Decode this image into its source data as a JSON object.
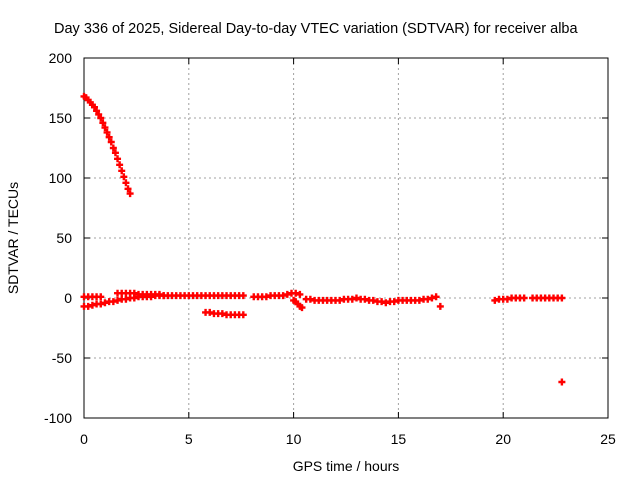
{
  "chart_data": {
    "type": "scatter",
    "title": "Day 336 of 2025, Sidereal Day-to-day VTEC variation (SDTVAR) for receiver alba",
    "xlabel": "GPS time / hours",
    "ylabel": "SDTVAR / TECUs",
    "xlim": [
      0,
      25
    ],
    "ylim": [
      -100,
      200
    ],
    "xticks": [
      0,
      5,
      10,
      15,
      20,
      25
    ],
    "yticks": [
      -100,
      -50,
      0,
      50,
      100,
      150,
      200
    ],
    "grid": true,
    "legend": "none",
    "marker": "+",
    "color": "#ff0000",
    "series": [
      {
        "points": [
          [
            0.0,
            168
          ],
          [
            0.1,
            167
          ],
          [
            0.2,
            165
          ],
          [
            0.3,
            163
          ],
          [
            0.4,
            161
          ],
          [
            0.5,
            159
          ],
          [
            0.6,
            156
          ],
          [
            0.7,
            153
          ],
          [
            0.8,
            150
          ],
          [
            0.9,
            146
          ],
          [
            1.0,
            142
          ],
          [
            1.1,
            138
          ],
          [
            1.2,
            134
          ],
          [
            1.3,
            130
          ],
          [
            1.4,
            125
          ],
          [
            1.5,
            121
          ],
          [
            1.6,
            116
          ],
          [
            1.7,
            111
          ],
          [
            1.8,
            106
          ],
          [
            1.9,
            101
          ],
          [
            2.0,
            96
          ],
          [
            2.1,
            91
          ],
          [
            2.2,
            87
          ],
          [
            0.0,
            -7
          ],
          [
            0.2,
            -7
          ],
          [
            0.4,
            -6
          ],
          [
            0.6,
            -5
          ],
          [
            0.8,
            -5
          ],
          [
            1.0,
            -4
          ],
          [
            1.2,
            -3
          ],
          [
            1.4,
            -3
          ],
          [
            1.6,
            -2
          ],
          [
            1.8,
            -1
          ],
          [
            2.0,
            -1
          ],
          [
            2.2,
            0
          ],
          [
            2.4,
            0
          ],
          [
            2.6,
            1
          ],
          [
            2.8,
            1
          ],
          [
            3.0,
            1
          ],
          [
            3.2,
            1
          ],
          [
            3.4,
            2
          ],
          [
            3.6,
            2
          ],
          [
            3.8,
            2
          ],
          [
            4.0,
            2
          ],
          [
            4.2,
            2
          ],
          [
            4.4,
            2
          ],
          [
            0.0,
            1
          ],
          [
            0.2,
            1
          ],
          [
            0.4,
            1
          ],
          [
            0.6,
            1
          ],
          [
            0.8,
            1
          ],
          [
            1.6,
            4
          ],
          [
            1.8,
            4
          ],
          [
            2.0,
            4
          ],
          [
            2.2,
            4
          ],
          [
            2.4,
            4
          ],
          [
            2.6,
            3
          ],
          [
            2.8,
            3
          ],
          [
            3.0,
            3
          ],
          [
            3.2,
            3
          ],
          [
            3.4,
            3
          ],
          [
            3.6,
            3
          ],
          [
            3.8,
            2
          ],
          [
            4.6,
            2
          ],
          [
            4.8,
            2
          ],
          [
            5.0,
            2
          ],
          [
            5.2,
            2
          ],
          [
            5.4,
            2
          ],
          [
            5.6,
            2
          ],
          [
            5.8,
            2
          ],
          [
            6.0,
            2
          ],
          [
            6.2,
            2
          ],
          [
            6.4,
            2
          ],
          [
            6.6,
            2
          ],
          [
            6.8,
            2
          ],
          [
            7.0,
            2
          ],
          [
            7.2,
            2
          ],
          [
            7.4,
            2
          ],
          [
            7.6,
            2
          ],
          [
            5.8,
            -12
          ],
          [
            6.0,
            -12
          ],
          [
            6.2,
            -13
          ],
          [
            6.4,
            -13
          ],
          [
            6.6,
            -13
          ],
          [
            6.8,
            -14
          ],
          [
            7.0,
            -14
          ],
          [
            7.2,
            -14
          ],
          [
            7.4,
            -14
          ],
          [
            7.6,
            -14
          ],
          [
            8.1,
            1
          ],
          [
            8.3,
            1
          ],
          [
            8.5,
            1
          ],
          [
            8.7,
            1
          ],
          [
            8.9,
            2
          ],
          [
            9.1,
            2
          ],
          [
            9.3,
            2
          ],
          [
            9.5,
            2
          ],
          [
            9.7,
            3
          ],
          [
            9.9,
            4
          ],
          [
            10.1,
            4
          ],
          [
            10.3,
            3
          ],
          [
            10.0,
            -2
          ],
          [
            10.1,
            -3
          ],
          [
            10.2,
            -5
          ],
          [
            10.3,
            -7
          ],
          [
            10.4,
            -8
          ],
          [
            10.6,
            -1
          ],
          [
            10.8,
            -1
          ],
          [
            11.0,
            -2
          ],
          [
            11.2,
            -2
          ],
          [
            11.4,
            -2
          ],
          [
            11.6,
            -2
          ],
          [
            11.8,
            -2
          ],
          [
            12.0,
            -2
          ],
          [
            12.2,
            -2
          ],
          [
            12.4,
            -1
          ],
          [
            12.6,
            -1
          ],
          [
            12.8,
            -1
          ],
          [
            13.0,
            0
          ],
          [
            13.2,
            -1
          ],
          [
            13.4,
            -1
          ],
          [
            13.6,
            -2
          ],
          [
            13.8,
            -2
          ],
          [
            14.0,
            -3
          ],
          [
            14.2,
            -3
          ],
          [
            14.4,
            -4
          ],
          [
            14.6,
            -3
          ],
          [
            14.8,
            -3
          ],
          [
            15.0,
            -2
          ],
          [
            15.2,
            -2
          ],
          [
            15.4,
            -2
          ],
          [
            15.6,
            -2
          ],
          [
            15.8,
            -2
          ],
          [
            16.0,
            -2
          ],
          [
            16.2,
            -1
          ],
          [
            16.4,
            -1
          ],
          [
            16.6,
            0
          ],
          [
            16.8,
            1
          ],
          [
            17.0,
            -7
          ],
          [
            19.6,
            -2
          ],
          [
            19.8,
            -1
          ],
          [
            20.0,
            -1
          ],
          [
            20.2,
            -1
          ],
          [
            20.4,
            0
          ],
          [
            20.6,
            0
          ],
          [
            20.8,
            0
          ],
          [
            21.0,
            0
          ],
          [
            21.4,
            0
          ],
          [
            21.6,
            0
          ],
          [
            21.8,
            0
          ],
          [
            22.0,
            0
          ],
          [
            22.2,
            0
          ],
          [
            22.4,
            0
          ],
          [
            22.6,
            0
          ],
          [
            22.8,
            0
          ],
          [
            22.8,
            -70
          ]
        ]
      }
    ]
  }
}
